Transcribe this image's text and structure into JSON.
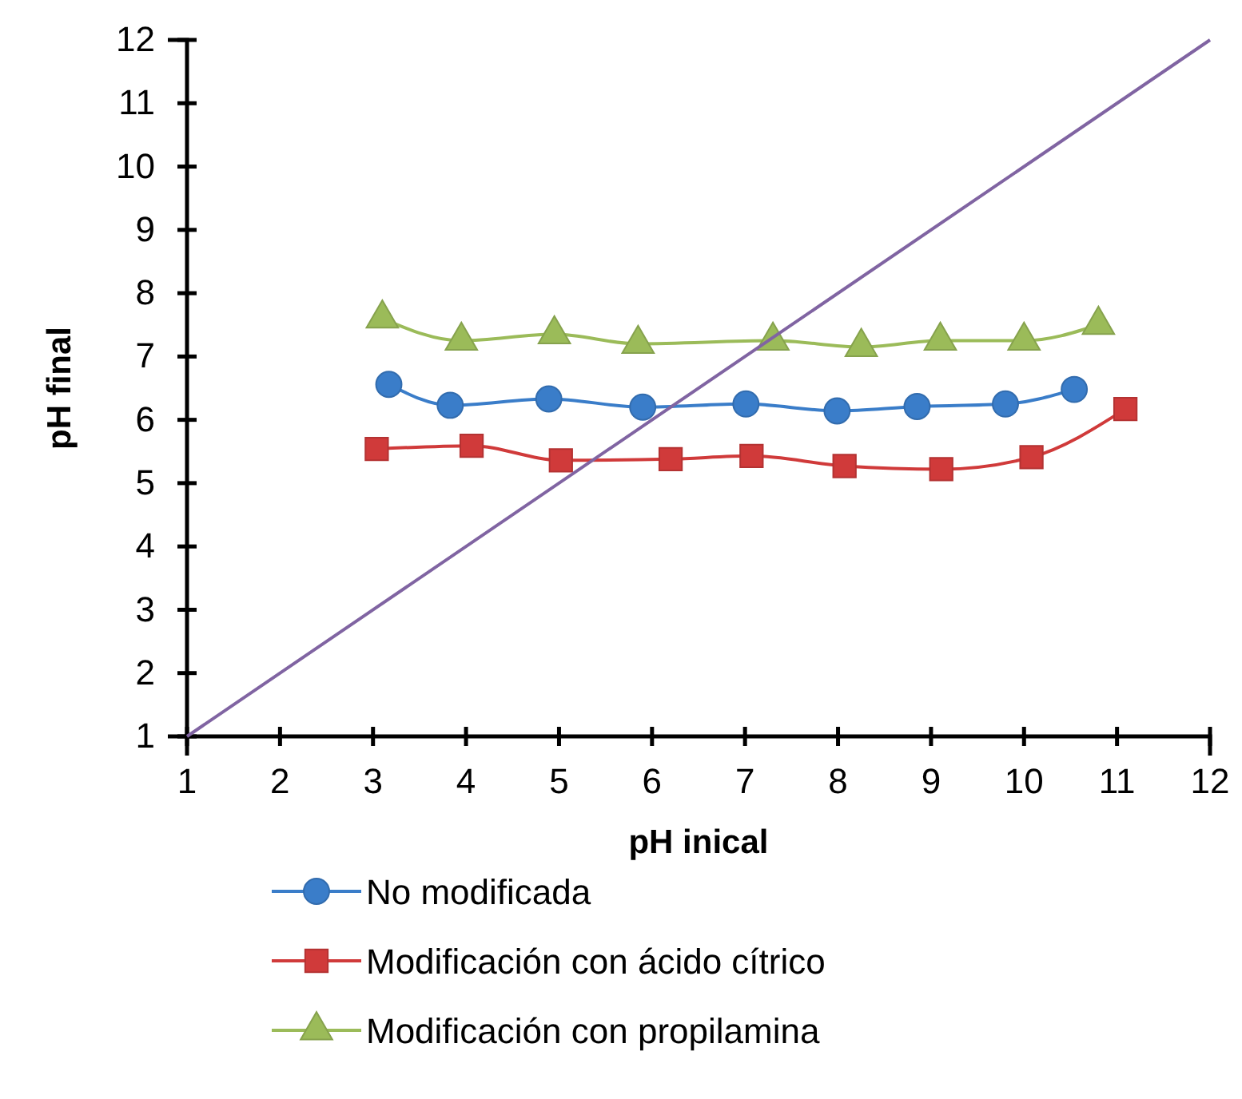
{
  "chart_data": {
    "type": "line",
    "xlabel": "pH inical",
    "ylabel": "pH final",
    "xlim": [
      1,
      12
    ],
    "ylim": [
      1,
      12
    ],
    "xticks": [
      1,
      2,
      3,
      4,
      5,
      6,
      7,
      8,
      9,
      10,
      11,
      12
    ],
    "yticks": [
      1,
      2,
      3,
      4,
      5,
      6,
      7,
      8,
      9,
      10,
      11,
      12
    ],
    "grid": false,
    "legend": "bottom",
    "line_style": "solid",
    "series": [
      {
        "name": "No modificada",
        "color": "#3a7dc9",
        "marker": "circle",
        "x": [
          3.17,
          3.83,
          4.89,
          5.9,
          7.01,
          7.99,
          8.85,
          9.8,
          10.54
        ],
        "values": [
          6.56,
          6.23,
          6.33,
          6.2,
          6.25,
          6.14,
          6.21,
          6.25,
          6.48
        ]
      },
      {
        "name": "Modificación con ácido cítrico",
        "color": "#d03a3a",
        "marker": "square",
        "x": [
          3.04,
          4.06,
          5.02,
          6.2,
          7.07,
          8.07,
          9.11,
          10.08,
          11.09
        ],
        "values": [
          5.54,
          5.59,
          5.36,
          5.38,
          5.43,
          5.27,
          5.22,
          5.41,
          6.17
        ]
      },
      {
        "name": "Modificación con propilamina",
        "color": "#9bbb59",
        "marker": "triangle",
        "x": [
          3.1,
          3.95,
          4.95,
          5.85,
          7.3,
          8.25,
          9.1,
          10,
          10.8
        ],
        "values": [
          7.6,
          7.25,
          7.35,
          7.2,
          7.25,
          7.15,
          7.25,
          7.25,
          7.5
        ]
      },
      {
        "color": "#8064a2",
        "marker": "none",
        "x": [
          1,
          12
        ],
        "values": [
          1,
          12
        ]
      }
    ]
  }
}
